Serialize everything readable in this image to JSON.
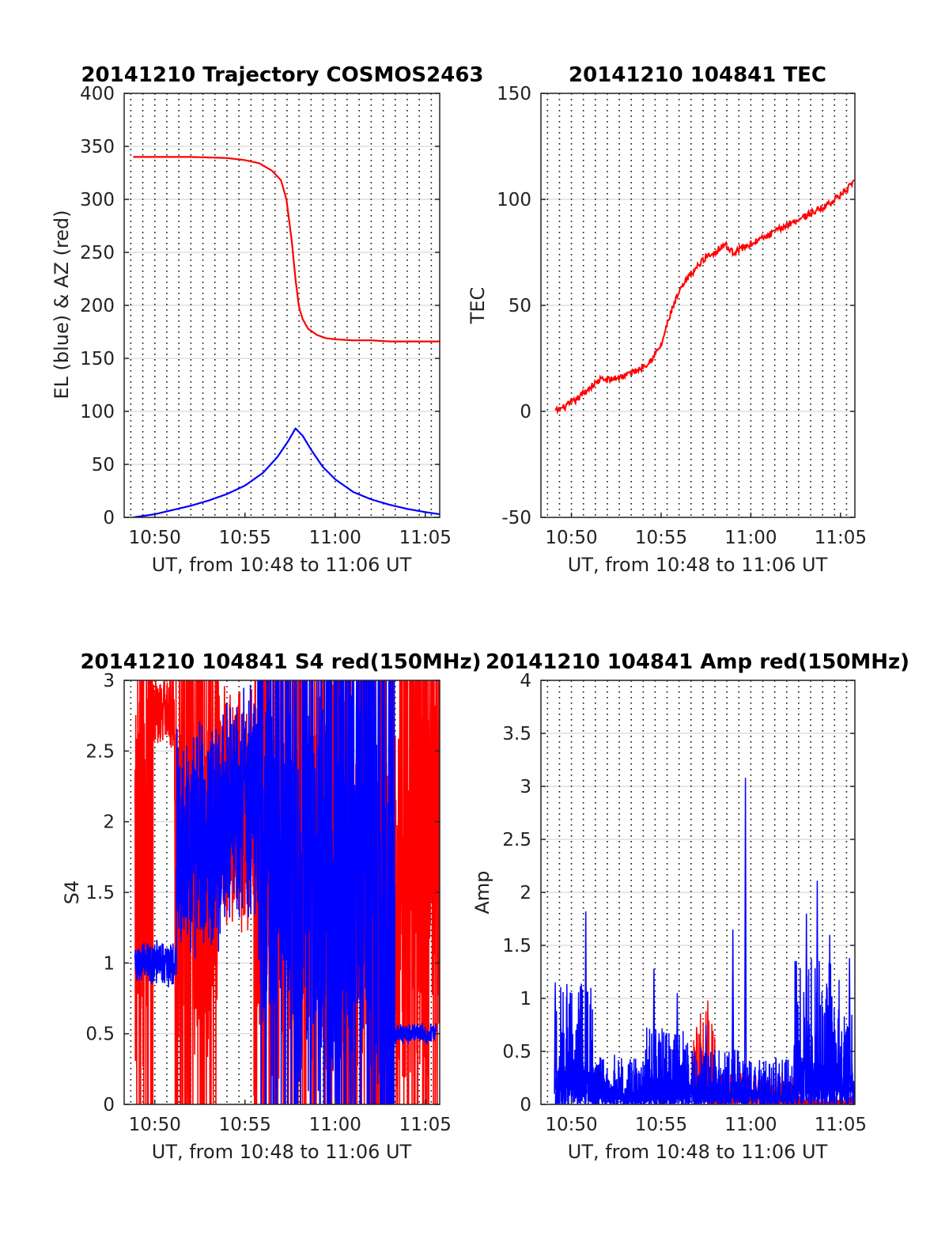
{
  "colors": {
    "blue": "#0000ff",
    "red": "#ff0000",
    "hgrid": "#dddddd",
    "vgrid": "#111111",
    "axis": "#262626"
  },
  "chart_data": [
    {
      "type": "line",
      "title": "20141210 Trajectory COSMOS2463",
      "xlabel": "UT, from 10:48 to 11:06 UT",
      "ylabel": "EL (blue) & AZ (red)",
      "x_unit": "minutes after 10:00 UT",
      "xlim": [
        48.3,
        65.8
      ],
      "ylim": [
        0,
        400
      ],
      "yticks": [
        0,
        50,
        100,
        150,
        200,
        250,
        300,
        350,
        400
      ],
      "ytick_labels": [
        "0",
        "50",
        "100",
        "150",
        "200",
        "250",
        "300",
        "350",
        "400"
      ],
      "xticks": [
        50,
        55,
        60,
        65
      ],
      "xtick_labels": [
        "10:50",
        "10:55",
        "11:00",
        "11:05"
      ],
      "grid": "dotted vertical every 40 s, light horizontal at y ticks",
      "series": [
        {
          "name": "AZ",
          "color": "red",
          "x": [
            48.8,
            50,
            52,
            54,
            55,
            55.8,
            56.5,
            57,
            57.3,
            57.6,
            57.8,
            58,
            58.2,
            58.5,
            59,
            59.5,
            60,
            61,
            62,
            63,
            64,
            65.8
          ],
          "y": [
            340,
            340,
            340,
            339,
            337,
            334,
            327,
            318,
            300,
            260,
            225,
            198,
            187,
            178,
            172,
            169,
            168,
            167,
            167,
            166,
            166,
            166
          ]
        },
        {
          "name": "EL",
          "color": "blue",
          "x": [
            48.8,
            50,
            51,
            52,
            53,
            54,
            55,
            56,
            56.8,
            57.4,
            57.8,
            58.2,
            58.7,
            59.3,
            60,
            61,
            62,
            63,
            64,
            65,
            65.8
          ],
          "y": [
            0,
            3,
            7,
            11,
            16,
            22,
            30,
            42,
            57,
            72,
            84,
            77,
            63,
            48,
            36,
            24,
            17,
            12,
            8,
            5,
            3
          ]
        }
      ]
    },
    {
      "type": "line",
      "title": "20141210 104841 TEC",
      "xlabel": "UT, from 10:48 to 11:06 UT",
      "ylabel": "TEC",
      "x_unit": "minutes after 10:00 UT",
      "xlim": [
        48.3,
        65.8
      ],
      "ylim": [
        -50,
        150
      ],
      "yticks": [
        -50,
        0,
        50,
        100,
        150
      ],
      "ytick_labels": [
        "-50",
        "0",
        "50",
        "100",
        "150"
      ],
      "xticks": [
        50,
        55,
        60,
        65
      ],
      "xtick_labels": [
        "10:50",
        "10:55",
        "11:00",
        "11:05"
      ],
      "series": [
        {
          "name": "TEC",
          "color": "red",
          "x": [
            49.1,
            49.6,
            50.2,
            51,
            51.6,
            52.2,
            53,
            53.8,
            54.4,
            55,
            55.3,
            55.6,
            56,
            56.5,
            57,
            57.5,
            58,
            58.5,
            59,
            59.5,
            60,
            61,
            62,
            63,
            64,
            65,
            65.8
          ],
          "y": [
            0,
            2,
            5,
            11,
            15,
            15,
            17,
            20,
            24,
            31,
            40,
            48,
            56,
            63,
            68,
            73,
            75,
            79,
            75,
            77,
            79,
            83,
            88,
            92,
            96,
            102,
            108
          ]
        }
      ]
    },
    {
      "type": "line",
      "title": "20141210 104841 S4 red(150MHz)",
      "xlabel": "UT, from 10:48 to 11:06 UT",
      "ylabel": "S4",
      "x_unit": "minutes after 10:00 UT",
      "xlim": [
        48.3,
        65.8
      ],
      "ylim": [
        0,
        3
      ],
      "yticks": [
        0,
        0.5,
        1,
        1.5,
        2,
        2.5,
        3
      ],
      "ytick_labels": [
        "0",
        "0.5",
        "1",
        "1.5",
        "2",
        "2.5",
        "3"
      ],
      "xticks": [
        50,
        55,
        60,
        65
      ],
      "xtick_labels": [
        "10:50",
        "10:55",
        "11:00",
        "11:05"
      ],
      "series": [
        {
          "name": "red",
          "color": "red",
          "segments": [
            {
              "x0": 48.9,
              "x1": 49.9,
              "mean": 1.6,
              "amp": 1.6
            },
            {
              "x0": 49.9,
              "x1": 51.1,
              "mean": 2.8,
              "amp": 0.3
            },
            {
              "x0": 51.1,
              "x1": 51.9,
              "mean": 1.5,
              "amp": 1.6
            },
            {
              "x0": 51.9,
              "x1": 53.5,
              "mean": 1.6,
              "amp": 1.6
            },
            {
              "x0": 53.5,
              "x1": 55.5,
              "mean": 2.1,
              "amp": 1.0
            },
            {
              "x0": 55.5,
              "x1": 57.5,
              "mean": 1.5,
              "amp": 1.5
            },
            {
              "x0": 57.5,
              "x1": 59.5,
              "mean": 1.6,
              "amp": 1.6
            },
            {
              "x0": 59.5,
              "x1": 62.5,
              "mean": 1.5,
              "amp": 1.6
            },
            {
              "x0": 62.5,
              "x1": 65.8,
              "mean": 1.5,
              "amp": 1.6
            }
          ]
        },
        {
          "name": "blue",
          "color": "blue",
          "segments": [
            {
              "x0": 48.9,
              "x1": 51.2,
              "mean": 1.0,
              "amp": 0.18
            },
            {
              "x0": 51.2,
              "x1": 53.7,
              "mean": 1.9,
              "amp": 0.9
            },
            {
              "x0": 53.7,
              "x1": 55.7,
              "mean": 2.1,
              "amp": 0.9
            },
            {
              "x0": 55.7,
              "x1": 57.7,
              "mean": 1.7,
              "amp": 1.3
            },
            {
              "x0": 57.7,
              "x1": 59.7,
              "mean": 1.5,
              "amp": 1.5
            },
            {
              "x0": 59.7,
              "x1": 62.3,
              "mean": 1.6,
              "amp": 1.6
            },
            {
              "x0": 62.3,
              "x1": 63.3,
              "mean": 1.0,
              "amp": 1.6
            },
            {
              "x0": 63.3,
              "x1": 65.6,
              "mean": 0.5,
              "amp": 0.08
            }
          ]
        }
      ]
    },
    {
      "type": "line",
      "title": "20141210 104841 Amp red(150MHz)",
      "xlabel": "UT, from 10:48 to 11:06 UT",
      "ylabel": "Amp",
      "x_unit": "minutes after 10:00 UT",
      "xlim": [
        48.3,
        65.8
      ],
      "ylim": [
        0,
        4
      ],
      "yticks": [
        0,
        0.5,
        1,
        1.5,
        2,
        2.5,
        3,
        3.5,
        4
      ],
      "ytick_labels": [
        "0",
        "0.5",
        "1",
        "1.5",
        "2",
        "2.5",
        "3",
        "3.5",
        "4"
      ],
      "xticks": [
        50,
        55,
        60,
        65
      ],
      "xtick_labels": [
        "10:50",
        "10:55",
        "11:00",
        "11:05"
      ],
      "series": [
        {
          "name": "red",
          "color": "red",
          "segments": [
            {
              "x0": 56.8,
              "x1": 58.0,
              "peak": 0.9
            },
            {
              "x0": 58.0,
              "x1": 62.5,
              "peak": 0.3
            },
            {
              "x0": 62.5,
              "x1": 65.8,
              "peak": 0.08
            }
          ],
          "peaks": [
            {
              "x": 57.6,
              "y": 0.98
            }
          ]
        },
        {
          "name": "blue",
          "color": "blue",
          "segments": [
            {
              "x0": 49.1,
              "x1": 51.4,
              "peak": 1.15
            },
            {
              "x0": 51.4,
              "x1": 54.0,
              "peak": 0.5
            },
            {
              "x0": 54.0,
              "x1": 56.5,
              "peak": 0.75
            },
            {
              "x0": 56.5,
              "x1": 59.5,
              "peak": 0.55
            },
            {
              "x0": 59.5,
              "x1": 62.4,
              "peak": 0.45
            },
            {
              "x0": 62.4,
              "x1": 65.0,
              "peak": 1.4
            },
            {
              "x0": 65.0,
              "x1": 65.8,
              "peak": 0.9
            }
          ],
          "peaks": [
            {
              "x": 49.1,
              "y": 1.15
            },
            {
              "x": 50.8,
              "y": 1.82
            },
            {
              "x": 54.6,
              "y": 1.28
            },
            {
              "x": 55.9,
              "y": 1.05
            },
            {
              "x": 57.5,
              "y": 0.75
            },
            {
              "x": 59.0,
              "y": 1.65
            },
            {
              "x": 59.7,
              "y": 3.08
            },
            {
              "x": 63.1,
              "y": 1.8
            },
            {
              "x": 63.7,
              "y": 2.11
            },
            {
              "x": 64.4,
              "y": 1.6
            },
            {
              "x": 65.5,
              "y": 1.38
            }
          ]
        }
      ]
    }
  ]
}
